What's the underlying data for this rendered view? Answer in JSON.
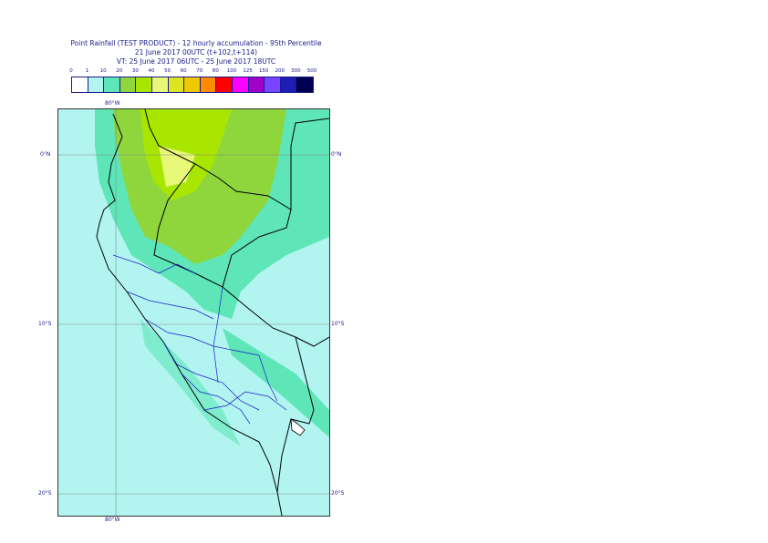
{
  "title": {
    "line1": "Point Rainfall (TEST PRODUCT) - 12 hourly accumulation - 95th Percentile",
    "line2": "21 June 2017 00UTC (t+102,t+114)",
    "line3": "VT: 25 June 2017 06UTC - 25 June 2017 18UTC"
  },
  "legend": {
    "labels": [
      "0",
      "1",
      "10",
      "20",
      "30",
      "40",
      "50",
      "60",
      "70",
      "80",
      "100",
      "125",
      "150",
      "200",
      "300",
      "500"
    ],
    "colors": [
      "#ffffff",
      "#b2f5f0",
      "#5ee6b8",
      "#8ed63c",
      "#a8e600",
      "#e8f878",
      "#dce61e",
      "#f0c800",
      "#ff8c00",
      "#ff0000",
      "#ff00ff",
      "#a000c8",
      "#7846ff",
      "#1e1eb4",
      "#000050"
    ]
  },
  "map": {
    "lon_label_top": "80°W",
    "lon_label_bottom": "80°W",
    "lat_labels": [
      "0°N",
      "10°S",
      "20°S"
    ]
  }
}
